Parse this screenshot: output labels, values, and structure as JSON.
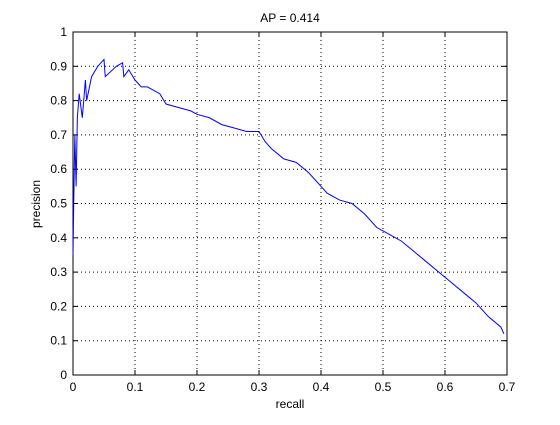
{
  "chart_data": {
    "type": "line",
    "title": "AP = 0.414",
    "x_label": "recall",
    "y_label": "precision",
    "x": [
      0,
      0.002,
      0.003,
      0.005,
      0.007,
      0.01,
      0.015,
      0.02,
      0.022,
      0.03,
      0.04,
      0.05,
      0.052,
      0.07,
      0.08,
      0.082,
      0.09,
      0.1,
      0.11,
      0.12,
      0.14,
      0.15,
      0.17,
      0.19,
      0.2,
      0.22,
      0.24,
      0.26,
      0.28,
      0.3,
      0.31,
      0.32,
      0.34,
      0.36,
      0.38,
      0.4,
      0.41,
      0.43,
      0.45,
      0.47,
      0.49,
      0.51,
      0.53,
      0.55,
      0.57,
      0.59,
      0.61,
      0.63,
      0.65,
      0.67,
      0.69,
      0.695
    ],
    "series": [
      {
        "color": "#0000ff",
        "values": [
          0.35,
          0.6,
          0.7,
          0.55,
          0.75,
          0.82,
          0.75,
          0.86,
          0.8,
          0.87,
          0.9,
          0.92,
          0.87,
          0.9,
          0.91,
          0.87,
          0.89,
          0.86,
          0.84,
          0.84,
          0.82,
          0.79,
          0.78,
          0.77,
          0.76,
          0.75,
          0.73,
          0.72,
          0.71,
          0.71,
          0.68,
          0.66,
          0.63,
          0.62,
          0.59,
          0.55,
          0.53,
          0.51,
          0.5,
          0.47,
          0.43,
          0.41,
          0.39,
          0.36,
          0.33,
          0.3,
          0.27,
          0.24,
          0.21,
          0.17,
          0.14,
          0.12
        ]
      }
    ],
    "xlim": [
      0,
      0.7
    ],
    "ylim": [
      0,
      1
    ],
    "xticks": [
      0,
      0.1,
      0.2,
      0.3,
      0.4,
      0.5,
      0.6,
      0.7
    ],
    "yticks": [
      0,
      0.1,
      0.2,
      0.3,
      0.4,
      0.5,
      0.6,
      0.7,
      0.8,
      0.9,
      1
    ],
    "grid": true
  }
}
